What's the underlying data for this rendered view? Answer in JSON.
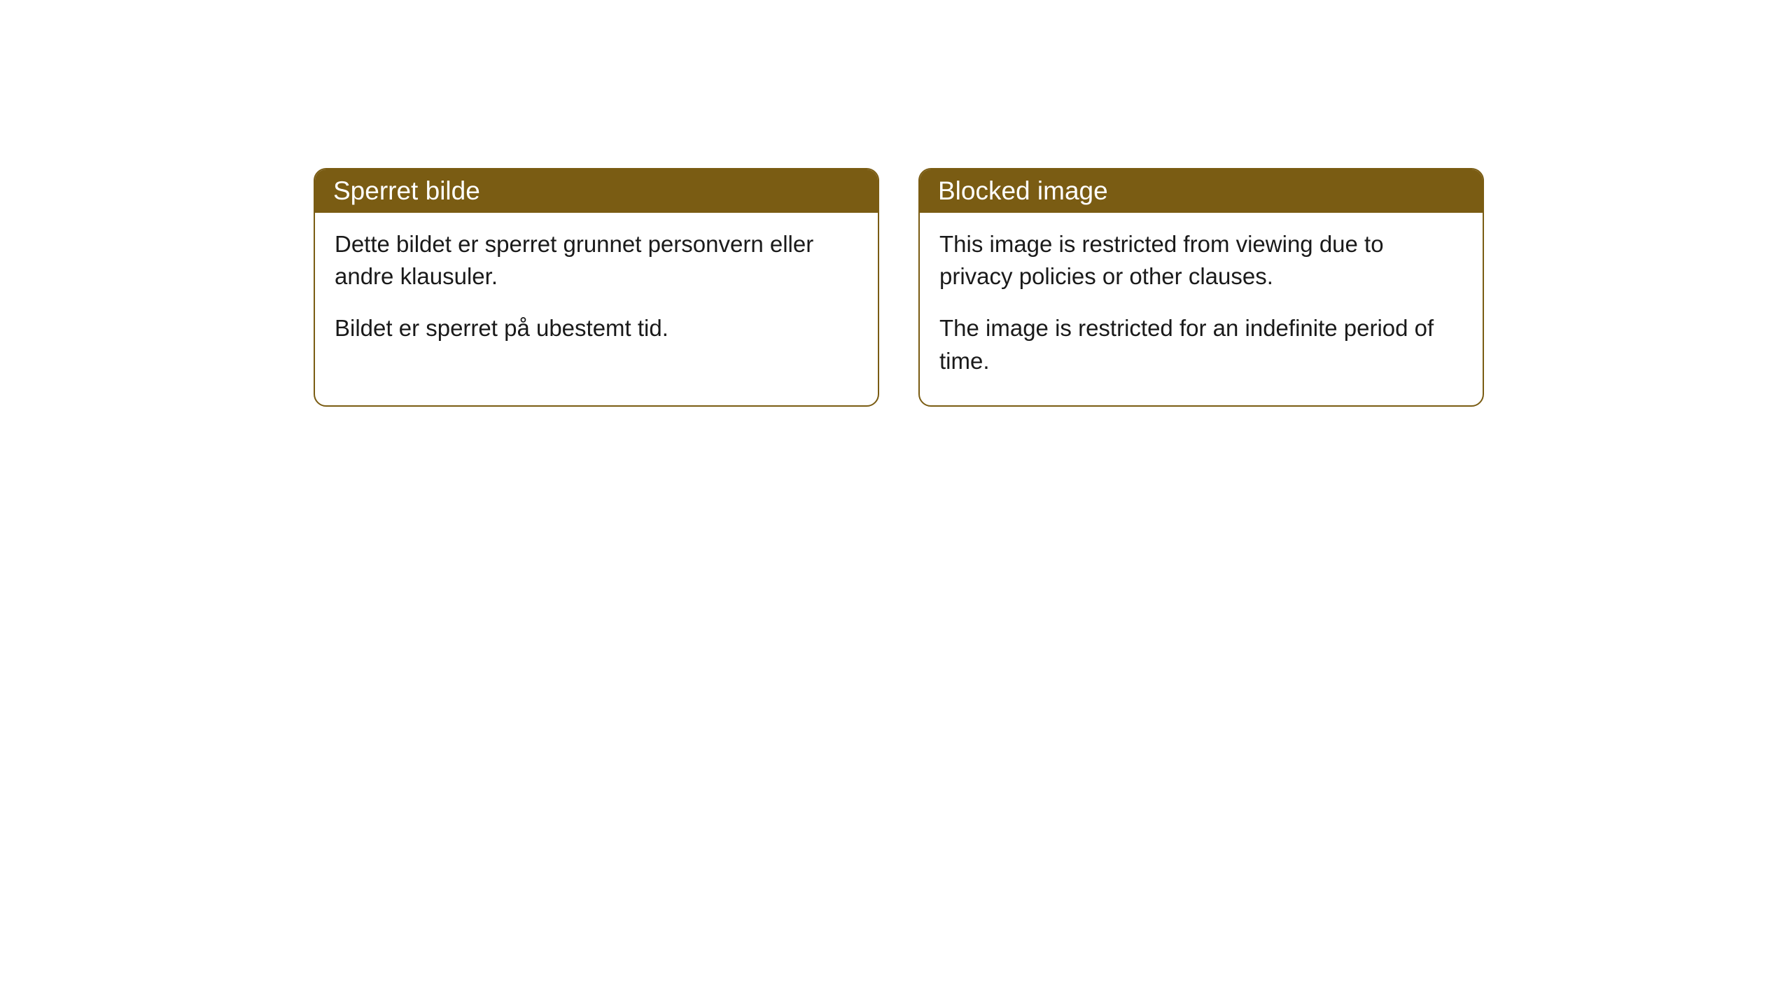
{
  "cards": [
    {
      "title": "Sperret bilde",
      "paragraph1": "Dette bildet er sperret grunnet personvern eller andre klausuler.",
      "paragraph2": "Bildet er sperret på ubestemt tid."
    },
    {
      "title": "Blocked image",
      "paragraph1": "This image is restricted from viewing due to privacy policies or other clauses.",
      "paragraph2": "The image is restricted for an indefinite period of time."
    }
  ],
  "styling": {
    "header_bg_color": "#7a5c13",
    "header_text_color": "#ffffff",
    "border_color": "#7a5c13",
    "body_text_color": "#1a1a1a",
    "card_bg_color": "#ffffff",
    "border_radius": 18,
    "header_fontsize": 37,
    "body_fontsize": 33
  }
}
